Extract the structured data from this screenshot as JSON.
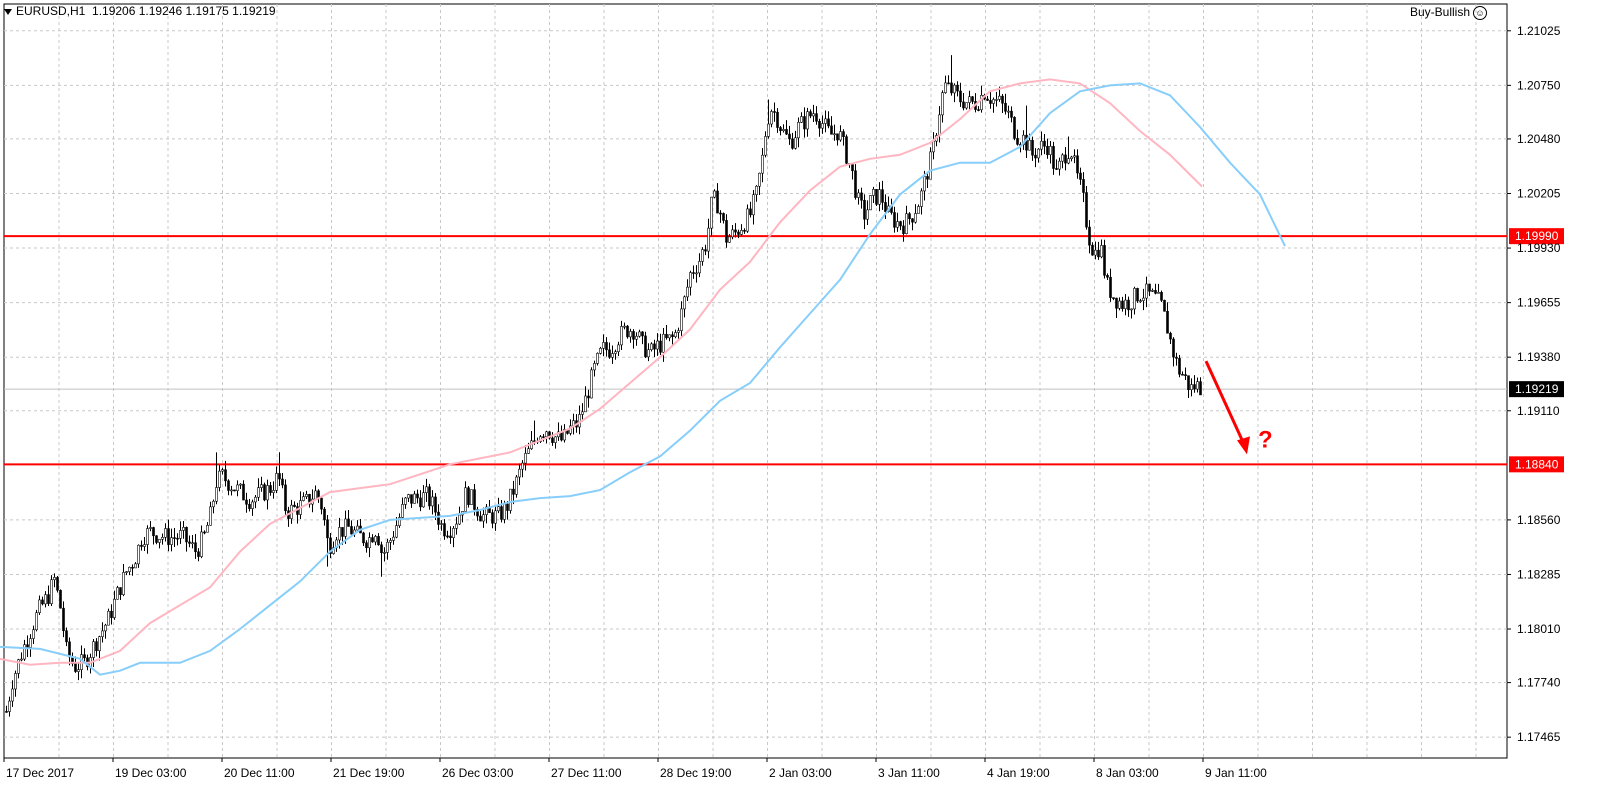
{
  "header": {
    "symbol_tf": "EURUSD,H1",
    "ohlc": "1.19206 1.19246 1.19175 1.19219",
    "expert_name": "Buy-Bullish",
    "expert_icon": "smiley-icon"
  },
  "colors": {
    "candle": "#000000",
    "grid": "#c8c8c8",
    "ma_fast": "#ffb6c1",
    "ma_slow": "#87cefa",
    "levels": "#ff0000",
    "annotation": "#ff0000"
  },
  "chart_data": {
    "type": "candlestick",
    "symbol": "EURUSD",
    "timeframe": "H1",
    "ylim": [
      1.1736,
      1.2116
    ],
    "y_ticks": [
      "1.21025",
      "1.20750",
      "1.20480",
      "1.20205",
      "1.19930",
      "1.19655",
      "1.19380",
      "1.19110",
      "1.18560",
      "1.18285",
      "1.18010",
      "1.17740",
      "1.17465"
    ],
    "x_ticks": [
      "17 Dec 2017",
      "19 Dec 03:00",
      "20 Dec 11:00",
      "21 Dec 19:00",
      "26 Dec 03:00",
      "27 Dec 11:00",
      "28 Dec 19:00",
      "2 Jan 03:00",
      "3 Jan 11:00",
      "4 Jan 19:00",
      "8 Jan 03:00",
      "9 Jan 11:00"
    ],
    "grid": true,
    "current_price": "1.19219",
    "levels": [
      {
        "label": "1.19990",
        "value": 1.1999
      },
      {
        "label": "1.18840",
        "value": 1.1884
      }
    ],
    "annotation": {
      "text": "?",
      "from_value": 1.1936,
      "to_value": 1.1884
    },
    "close_path": [
      [
        0,
        1.1744
      ],
      [
        12,
        1.1775
      ],
      [
        22,
        1.179
      ],
      [
        30,
        1.18
      ],
      [
        38,
        1.181
      ],
      [
        48,
        1.1818
      ],
      [
        54,
        1.1826
      ],
      [
        60,
        1.1812
      ],
      [
        66,
        1.179
      ],
      [
        74,
        1.1782
      ],
      [
        84,
        1.1784
      ],
      [
        96,
        1.1795
      ],
      [
        108,
        1.1806
      ],
      [
        118,
        1.182
      ],
      [
        126,
        1.183
      ],
      [
        134,
        1.1836
      ],
      [
        142,
        1.1848
      ],
      [
        150,
        1.185
      ],
      [
        160,
        1.1848
      ],
      [
        172,
        1.1847
      ],
      [
        182,
        1.1848
      ],
      [
        190,
        1.1843
      ],
      [
        196,
        1.184
      ],
      [
        204,
        1.1848
      ],
      [
        210,
        1.1858
      ],
      [
        216,
        1.1875
      ],
      [
        222,
        1.1878
      ],
      [
        230,
        1.1874
      ],
      [
        240,
        1.187
      ],
      [
        250,
        1.1866
      ],
      [
        260,
        1.1869
      ],
      [
        270,
        1.1872
      ],
      [
        278,
        1.1878
      ],
      [
        286,
        1.186
      ],
      [
        296,
        1.1862
      ],
      [
        306,
        1.1865
      ],
      [
        316,
        1.187
      ],
      [
        322,
        1.1862
      ],
      [
        328,
        1.1842
      ],
      [
        336,
        1.185
      ],
      [
        348,
        1.1852
      ],
      [
        358,
        1.1848
      ],
      [
        368,
        1.1846
      ],
      [
        376,
        1.1852
      ],
      [
        382,
        1.1838
      ],
      [
        390,
        1.1846
      ],
      [
        398,
        1.1856
      ],
      [
        406,
        1.1866
      ],
      [
        416,
        1.1867
      ],
      [
        426,
        1.1868
      ],
      [
        434,
        1.1862
      ],
      [
        442,
        1.1852
      ],
      [
        450,
        1.1852
      ],
      [
        458,
        1.1858
      ],
      [
        466,
        1.187
      ],
      [
        474,
        1.1864
      ],
      [
        482,
        1.1858
      ],
      [
        490,
        1.1858
      ],
      [
        498,
        1.1858
      ],
      [
        506,
        1.1862
      ],
      [
        514,
        1.1872
      ],
      [
        522,
        1.1884
      ],
      [
        530,
        1.1892
      ],
      [
        538,
        1.19
      ],
      [
        546,
        1.1902
      ],
      [
        554,
        1.1898
      ],
      [
        562,
        1.1896
      ],
      [
        570,
        1.1902
      ],
      [
        578,
        1.1905
      ],
      [
        586,
        1.1918
      ],
      [
        594,
        1.1932
      ],
      [
        602,
        1.1942
      ],
      [
        610,
        1.1942
      ],
      [
        618,
        1.1948
      ],
      [
        626,
        1.1952
      ],
      [
        634,
        1.1952
      ],
      [
        642,
        1.1944
      ],
      [
        650,
        1.194
      ],
      [
        658,
        1.1944
      ],
      [
        666,
        1.1946
      ],
      [
        674,
        1.1948
      ],
      [
        682,
        1.1962
      ],
      [
        690,
        1.198
      ],
      [
        698,
        1.1986
      ],
      [
        706,
        1.1996
      ],
      [
        712,
        1.2018
      ],
      [
        718,
        1.2015
      ],
      [
        726,
        1.1998
      ],
      [
        734,
        1.2
      ],
      [
        742,
        1.2005
      ],
      [
        750,
        1.201
      ],
      [
        756,
        1.202
      ],
      [
        762,
        1.2038
      ],
      [
        766,
        1.2055
      ],
      [
        770,
        1.2064
      ],
      [
        776,
        1.206
      ],
      [
        782,
        1.2052
      ],
      [
        790,
        1.2046
      ],
      [
        798,
        1.2054
      ],
      [
        806,
        1.2058
      ],
      [
        814,
        1.2062
      ],
      [
        822,
        1.2056
      ],
      [
        830,
        1.205
      ],
      [
        838,
        1.2052
      ],
      [
        846,
        1.204
      ],
      [
        852,
        1.203
      ],
      [
        858,
        1.2016
      ],
      [
        864,
        1.201
      ],
      [
        872,
        1.2018
      ],
      [
        880,
        1.202
      ],
      [
        888,
        1.201
      ],
      [
        896,
        1.2006
      ],
      [
        904,
        1.2005
      ],
      [
        912,
        1.201
      ],
      [
        920,
        1.2018
      ],
      [
        926,
        1.203
      ],
      [
        932,
        1.204
      ],
      [
        938,
        1.206
      ],
      [
        944,
        1.2075
      ],
      [
        952,
        1.2072
      ],
      [
        960,
        1.2068
      ],
      [
        968,
        1.2066
      ],
      [
        976,
        1.2066
      ],
      [
        984,
        1.2072
      ],
      [
        992,
        1.2068
      ],
      [
        1000,
        1.2066
      ],
      [
        1008,
        1.206
      ],
      [
        1016,
        1.205
      ],
      [
        1024,
        1.2048
      ],
      [
        1032,
        1.204
      ],
      [
        1040,
        1.2044
      ],
      [
        1048,
        1.2045
      ],
      [
        1056,
        1.203
      ],
      [
        1064,
        1.204
      ],
      [
        1070,
        1.2044
      ],
      [
        1076,
        1.203
      ],
      [
        1082,
        1.202
      ],
      [
        1088,
        1.2
      ],
      [
        1094,
        1.199
      ],
      [
        1100,
        1.1995
      ],
      [
        1106,
        1.1975
      ],
      [
        1114,
        1.1968
      ],
      [
        1122,
        1.1965
      ],
      [
        1130,
        1.1966
      ],
      [
        1138,
        1.197
      ],
      [
        1146,
        1.197
      ],
      [
        1154,
        1.1968
      ],
      [
        1160,
        1.1965
      ],
      [
        1166,
        1.1955
      ],
      [
        1172,
        1.1942
      ],
      [
        1178,
        1.1932
      ],
      [
        1184,
        1.1928
      ],
      [
        1190,
        1.1922
      ],
      [
        1196,
        1.1924
      ],
      [
        1203,
        1.1922
      ]
    ],
    "series": [
      {
        "name": "",
        "color": "#ffb6c1",
        "points": [
          [
            0,
            1.1786
          ],
          [
            30,
            1.1783
          ],
          [
            60,
            1.1784
          ],
          [
            90,
            1.1784
          ],
          [
            120,
            1.179
          ],
          [
            150,
            1.1804
          ],
          [
            180,
            1.1813
          ],
          [
            210,
            1.1822
          ],
          [
            240,
            1.184
          ],
          [
            270,
            1.1854
          ],
          [
            300,
            1.1862
          ],
          [
            330,
            1.187
          ],
          [
            360,
            1.1872
          ],
          [
            390,
            1.1874
          ],
          [
            420,
            1.1879
          ],
          [
            450,
            1.1884
          ],
          [
            480,
            1.1887
          ],
          [
            510,
            1.189
          ],
          [
            540,
            1.1896
          ],
          [
            570,
            1.1902
          ],
          [
            600,
            1.1912
          ],
          [
            630,
            1.1925
          ],
          [
            660,
            1.1938
          ],
          [
            690,
            1.1952
          ],
          [
            720,
            1.1972
          ],
          [
            750,
            1.1986
          ],
          [
            780,
            1.2006
          ],
          [
            810,
            1.2022
          ],
          [
            840,
            1.2034
          ],
          [
            870,
            1.2038
          ],
          [
            900,
            1.204
          ],
          [
            930,
            1.2046
          ],
          [
            960,
            1.2058
          ],
          [
            990,
            1.2072
          ],
          [
            1020,
            1.2076
          ],
          [
            1050,
            1.2078
          ],
          [
            1080,
            1.2076
          ],
          [
            1110,
            1.2066
          ],
          [
            1140,
            1.2052
          ],
          [
            1170,
            1.204
          ],
          [
            1202,
            1.2024
          ]
        ]
      },
      {
        "name": "",
        "color": "#87cefa",
        "points": [
          [
            0,
            1.1792
          ],
          [
            40,
            1.1791
          ],
          [
            80,
            1.1786
          ],
          [
            100,
            1.1778
          ],
          [
            120,
            1.178
          ],
          [
            140,
            1.1784
          ],
          [
            180,
            1.1784
          ],
          [
            210,
            1.179
          ],
          [
            240,
            1.1801
          ],
          [
            270,
            1.1813
          ],
          [
            300,
            1.1825
          ],
          [
            330,
            1.184
          ],
          [
            360,
            1.1851
          ],
          [
            390,
            1.1856
          ],
          [
            420,
            1.1857
          ],
          [
            450,
            1.1858
          ],
          [
            480,
            1.1861
          ],
          [
            510,
            1.1865
          ],
          [
            540,
            1.1867
          ],
          [
            570,
            1.1868
          ],
          [
            600,
            1.1871
          ],
          [
            630,
            1.188
          ],
          [
            660,
            1.1888
          ],
          [
            690,
            1.1901
          ],
          [
            720,
            1.1916
          ],
          [
            750,
            1.1925
          ],
          [
            780,
            1.1943
          ],
          [
            810,
            1.196
          ],
          [
            840,
            1.1977
          ],
          [
            870,
            1.2
          ],
          [
            900,
            1.202
          ],
          [
            930,
            1.2032
          ],
          [
            960,
            1.2036
          ],
          [
            990,
            1.2036
          ],
          [
            1020,
            1.2044
          ],
          [
            1050,
            1.2061
          ],
          [
            1080,
            1.2072
          ],
          [
            1110,
            1.2075
          ],
          [
            1140,
            1.2076
          ],
          [
            1170,
            1.207
          ],
          [
            1200,
            1.2054
          ],
          [
            1230,
            1.2036
          ],
          [
            1260,
            1.202
          ],
          [
            1285,
            1.1994
          ]
        ]
      }
    ]
  }
}
